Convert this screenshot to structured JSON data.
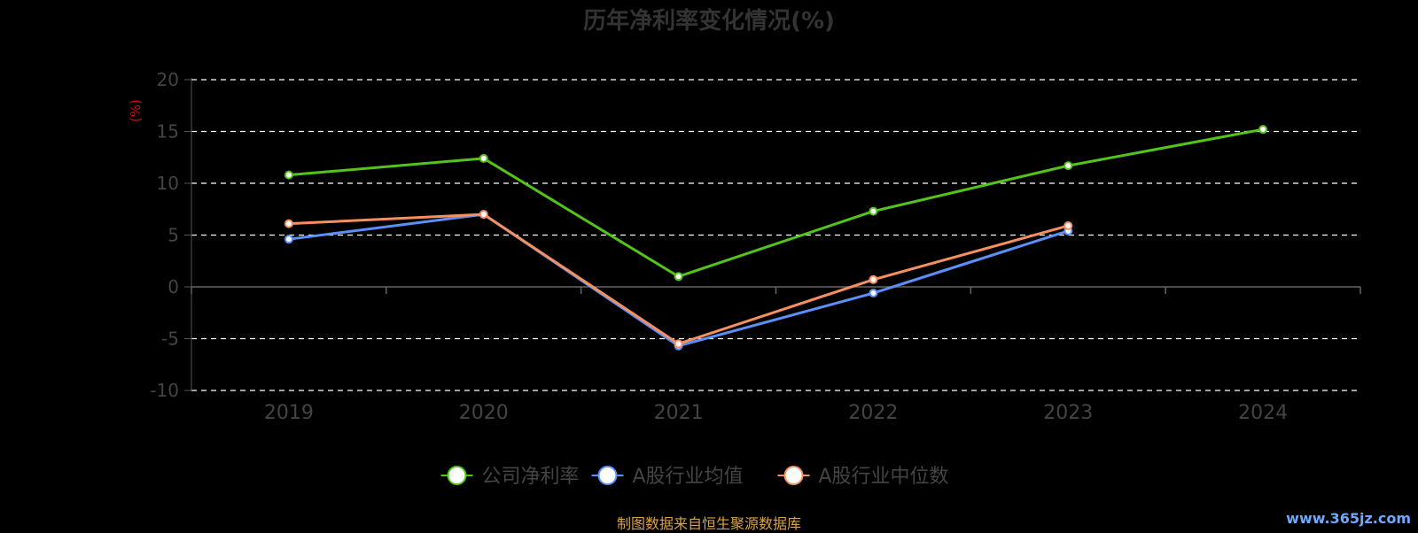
{
  "chart_data": {
    "type": "line",
    "title": "历年净利率变化情况(%)",
    "ylabel": "(%)",
    "xlabel": "",
    "categories": [
      "2019",
      "2020",
      "2021",
      "2022",
      "2023",
      "2024"
    ],
    "ylim": [
      -10,
      20
    ],
    "yticks": [
      20,
      15,
      10,
      5,
      0,
      -5,
      -10
    ],
    "grid": true,
    "legend_position": "bottom",
    "series": [
      {
        "name": "公司净利率",
        "color": "#52c41a",
        "values": [
          10.8,
          12.4,
          1.0,
          7.3,
          11.7,
          15.2
        ]
      },
      {
        "name": "A股行业均值",
        "color": "#5b8ff9",
        "values": [
          4.6,
          7.0,
          -5.7,
          -0.6,
          5.4,
          null
        ]
      },
      {
        "name": "A股行业中位数",
        "color": "#f6905e",
        "values": [
          6.1,
          7.0,
          -5.5,
          0.7,
          5.9,
          null
        ]
      }
    ]
  },
  "footer": {
    "source": "制图数据来自恒生聚源数据库",
    "watermark": "www.365jz.com"
  }
}
